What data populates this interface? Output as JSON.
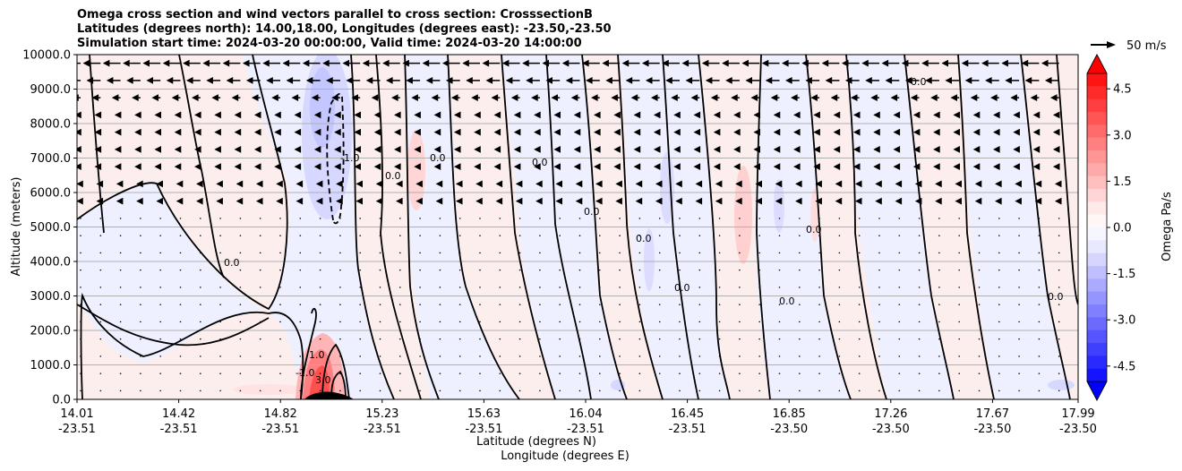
{
  "chart_data": {
    "type": "contour",
    "title_lines": [
      "Omega cross section and wind vectors parallel to cross section: CrosssectionB",
      "Latitudes (degrees north): 14.00,18.00, Longitudes (degrees east): -23.50,-23.50",
      "Simulation start time: 2024-03-20 00:00:00, Valid time: 2024-03-20 14:00:00"
    ],
    "ylabel": "Altitude (meters)",
    "xlabel_lines": [
      "Latitude (degrees N)",
      "Longitude (degrees E)"
    ],
    "ylim": [
      0,
      10000
    ],
    "y_ticks": [
      "0.0",
      "1000.0",
      "2000.0",
      "3000.0",
      "4000.0",
      "5000.0",
      "6000.0",
      "7000.0",
      "8000.0",
      "9000.0",
      "10000.0"
    ],
    "y_tick_values": [
      0,
      1000,
      2000,
      3000,
      4000,
      5000,
      6000,
      7000,
      8000,
      9000,
      10000
    ],
    "x_ticks": [
      {
        "lat": "14.01",
        "lon": "-23.51"
      },
      {
        "lat": "14.42",
        "lon": "-23.51"
      },
      {
        "lat": "14.82",
        "lon": "-23.51"
      },
      {
        "lat": "15.23",
        "lon": "-23.51"
      },
      {
        "lat": "15.63",
        "lon": "-23.51"
      },
      {
        "lat": "16.04",
        "lon": "-23.51"
      },
      {
        "lat": "16.45",
        "lon": "-23.51"
      },
      {
        "lat": "16.85",
        "lon": "-23.50"
      },
      {
        "lat": "17.26",
        "lon": "-23.50"
      },
      {
        "lat": "17.67",
        "lon": "-23.50"
      },
      {
        "lat": "17.99",
        "lon": "-23.50"
      }
    ],
    "grid": "horizontal",
    "colorbar": {
      "label": "Omega Pa/s",
      "range": [
        -5.0,
        5.0
      ],
      "ticks": [
        "-4.5",
        "-3.0",
        "-1.5",
        "0.0",
        "1.5",
        "3.0",
        "4.5"
      ],
      "tick_values": [
        -4.5,
        -3.0,
        -1.5,
        0.0,
        1.5,
        3.0,
        4.5
      ],
      "colormap": "bwr",
      "extend": "both"
    },
    "vector_key": {
      "label": "50 m/s"
    },
    "contour_labels": [
      "0.0",
      "-1.0",
      "1.0",
      "-3.0",
      "3.0"
    ]
  }
}
